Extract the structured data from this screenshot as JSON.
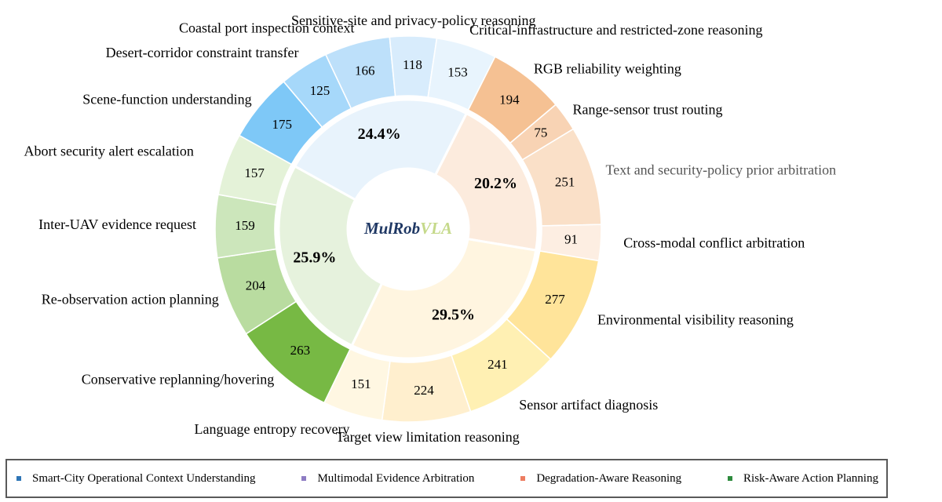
{
  "chart_data": {
    "type": "sunburst",
    "center_label": {
      "main": "MulRob",
      "accent": "VLA"
    },
    "groups": [
      {
        "name": "Smart-City Operational Context Understanding",
        "percent": "24.4%",
        "color": "#e8f3fc",
        "legend_color": "#2e75b6",
        "children": [
          {
            "label": "Scene-function understanding",
            "value": 175,
            "color": "#7ec8f7"
          },
          {
            "label": "Desert-corridor constraint transfer",
            "value": 125,
            "color": "#a6d8fa"
          },
          {
            "label": "Coastal port inspection context",
            "value": 166,
            "color": "#bde0fa"
          },
          {
            "label": "Sensitive-site and privacy-policy reasoning",
            "value": 118,
            "color": "#d8ecfc"
          },
          {
            "label": "Critical-infrastructure and restricted-zone reasoning",
            "value": 153,
            "color": "#e8f4fd"
          }
        ]
      },
      {
        "name": "Degradation-Aware Reasoning",
        "percent": "20.2%",
        "color": "#fcebdd",
        "legend_color": "#ed7d61",
        "children": [
          {
            "label": "RGB reliability weighting",
            "value": 194,
            "color": "#f5c193"
          },
          {
            "label": "Range-sensor trust routing",
            "value": 75,
            "color": "#f8d3b4"
          },
          {
            "label": "Text and security-policy prior arbitration",
            "value": 251,
            "color": "#fae0c8"
          },
          {
            "label": "Cross-modal conflict arbitration",
            "value": 91,
            "color": "#fdeee2"
          }
        ]
      },
      {
        "name": "Multimodal Evidence Arbitration",
        "percent": "29.5%",
        "color": "#fff5e0",
        "legend_color": "#8e7cc3",
        "children": [
          {
            "label": "Environmental visibility reasoning",
            "value": 277,
            "color": "#ffe49a"
          },
          {
            "label": "Sensor artifact diagnosis",
            "value": 241,
            "color": "#fff0b3"
          },
          {
            "label": "Target view limitation reasoning",
            "value": 224,
            "color": "#ffefce"
          },
          {
            "label": "Language entropy recovery",
            "value": 151,
            "color": "#fff7e2"
          }
        ]
      },
      {
        "name": "Risk-Aware Action Planning",
        "percent": "25.9%",
        "color": "#e6f2dd",
        "legend_color": "#2e8b3d",
        "children": [
          {
            "label": "Conservative replanning/hovering",
            "value": 263,
            "color": "#77b944"
          },
          {
            "label": "Re-observation action planning",
            "value": 204,
            "color": "#b9dca0"
          },
          {
            "label": "Inter-UAV evidence request",
            "value": 159,
            "color": "#cce6bb"
          },
          {
            "label": "Abort security alert escalation",
            "value": 157,
            "color": "#e4f2d8"
          }
        ]
      }
    ]
  },
  "legend": [
    {
      "label": "Smart-City Operational Context Understanding",
      "color": "#2e75b6"
    },
    {
      "label": "Multimodal Evidence Arbitration",
      "color": "#8e7cc3"
    },
    {
      "label": "Degradation-Aware Reasoning",
      "color": "#ed7d61"
    },
    {
      "label": "Risk-Aware Action Planning",
      "color": "#2e8b3d"
    }
  ]
}
